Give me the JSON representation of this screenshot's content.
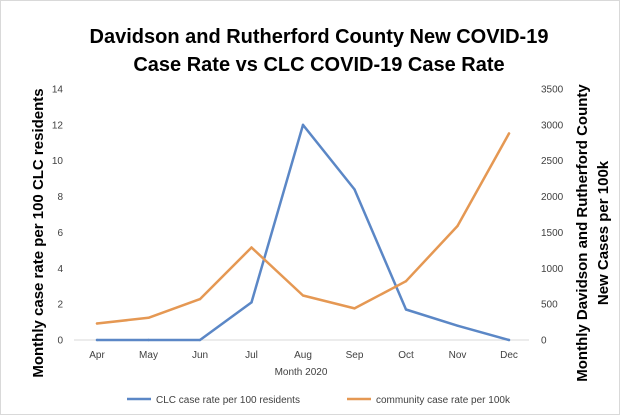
{
  "chart_data": {
    "type": "line",
    "title_lines": [
      "Davidson and Rutherford County New COVID-19",
      "Case Rate vs CLC COVID-19 Case Rate"
    ],
    "xlabel": "Month 2020",
    "ylabel_left": "Monthly case rate per 100 CLC residents",
    "ylabel_right_lines": [
      "Monthly Davidson and Rutherford County",
      "New Cases per 100k"
    ],
    "categories": [
      "Apr",
      "May",
      "Jun",
      "Jul",
      "Aug",
      "Sep",
      "Oct",
      "Nov",
      "Dec"
    ],
    "ylim_left": [
      0,
      14
    ],
    "yticks_left": [
      "0",
      "2",
      "4",
      "6",
      "8",
      "10",
      "12",
      "14"
    ],
    "ylim_right": [
      0,
      3500
    ],
    "yticks_right": [
      "0",
      "500",
      "1000",
      "1500",
      "2000",
      "2500",
      "3000",
      "3500"
    ],
    "series": [
      {
        "name": "CLC case rate per 100 residents",
        "axis": "left",
        "color": "#5b87c6",
        "values": [
          0,
          0,
          0,
          2.1,
          12.0,
          8.4,
          1.7,
          0.8,
          0.0
        ]
      },
      {
        "name": "community case rate per 100k",
        "axis": "right",
        "color": "#e59853",
        "values": [
          230,
          310,
          570,
          1290,
          620,
          440,
          820,
          1590,
          2880
        ]
      }
    ],
    "grid": false,
    "legend_position": "bottom"
  }
}
